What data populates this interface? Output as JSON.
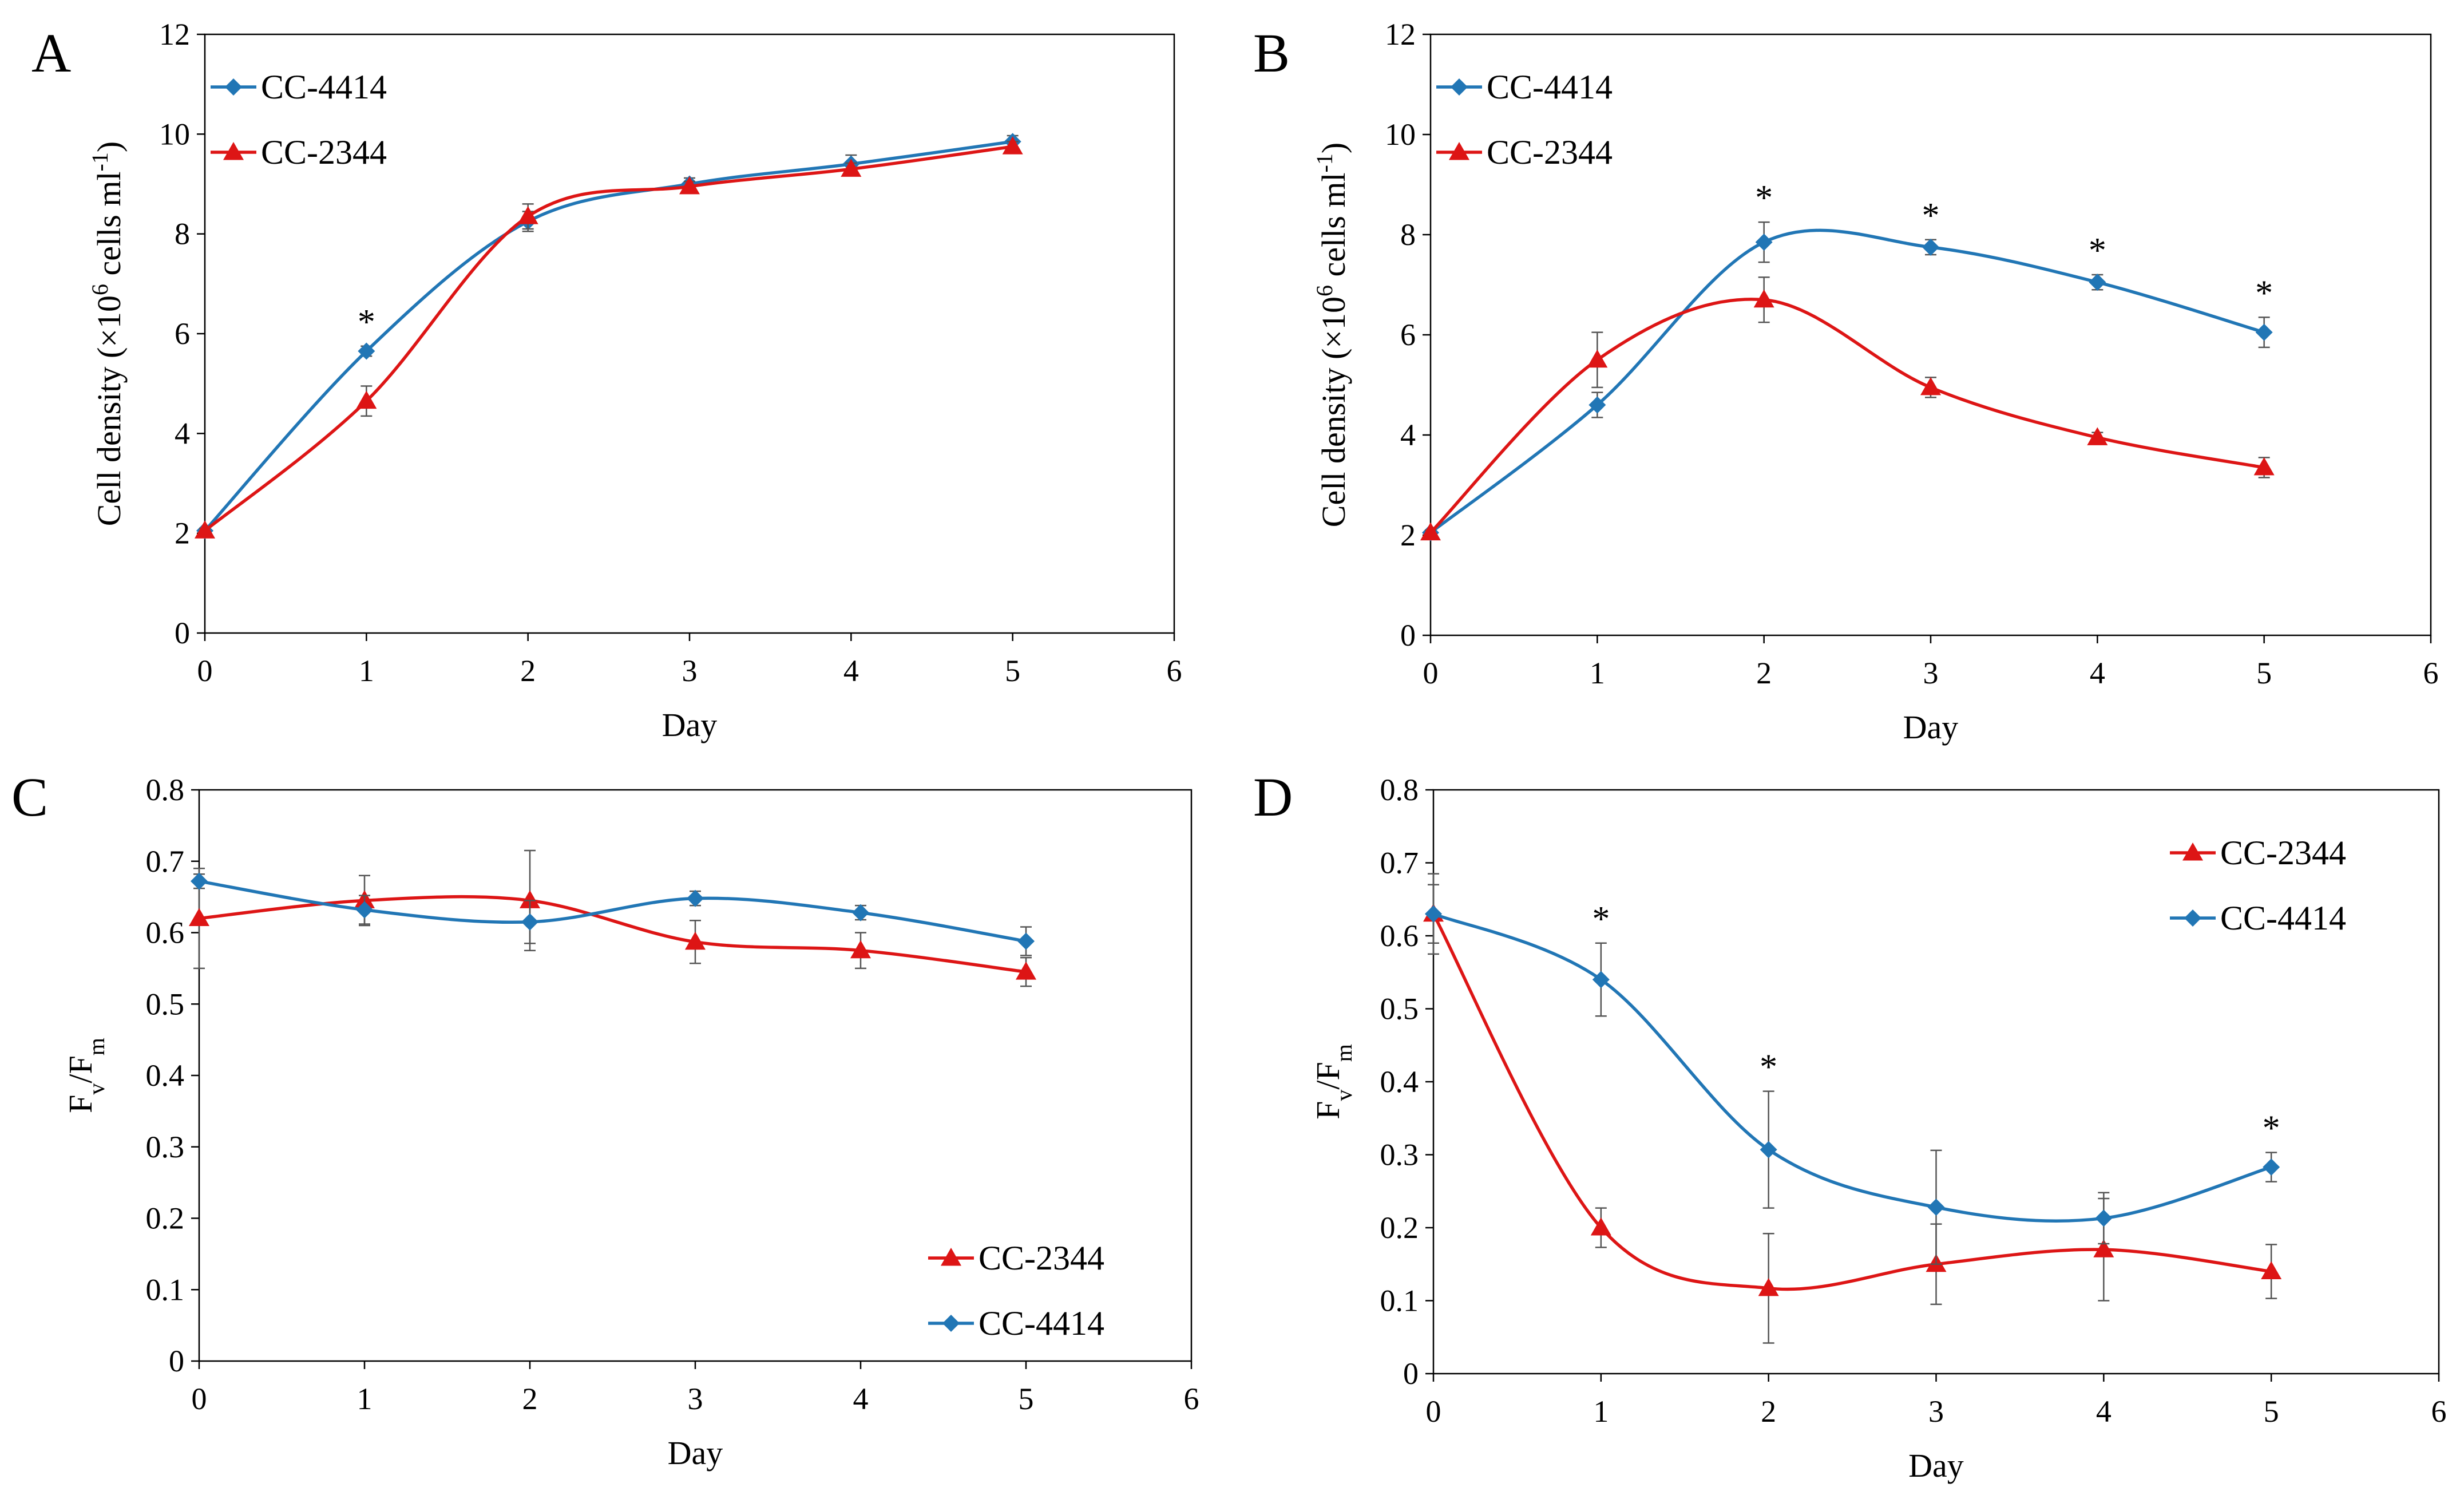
{
  "figure": {
    "colors": {
      "CC-4414": "#2176b5",
      "CC-2344": "#dd1515",
      "axis": "#000000",
      "errorbar": "#555555"
    }
  },
  "chart_data": [
    {
      "panel": "A",
      "type": "line",
      "xlabel": "Day",
      "ylabel": "Cell density (×10^6 cells ml^-1)",
      "ylabel_parts": {
        "main": "Cell density (×10",
        "sup1": "6",
        "mid": " cells ml",
        "sup2": "-1",
        "end": ")"
      },
      "xlim": [
        0,
        6
      ],
      "ylim": [
        0,
        12
      ],
      "xticks": [
        "0",
        "1",
        "2",
        "3",
        "4",
        "5",
        "6"
      ],
      "yticks": [
        "0",
        "2",
        "4",
        "6",
        "8",
        "10",
        "12"
      ],
      "legend_position": "top-left",
      "legend_order": [
        "CC-4414",
        "CC-2344"
      ],
      "series": [
        {
          "name": "CC-4414",
          "marker": "diamond",
          "x": [
            0,
            1,
            2,
            3,
            4,
            5
          ],
          "y": [
            2.05,
            5.65,
            8.25,
            9.0,
            9.4,
            9.85
          ],
          "err": [
            0.05,
            0.1,
            0.2,
            0.12,
            0.18,
            0.12
          ]
        },
        {
          "name": "CC-2344",
          "marker": "triangle",
          "x": [
            0,
            1,
            2,
            3,
            4,
            5
          ],
          "y": [
            2.05,
            4.65,
            8.35,
            8.95,
            9.3,
            9.75
          ],
          "err": [
            0.05,
            0.3,
            0.25,
            0.1,
            0.12,
            0.1
          ]
        }
      ],
      "significance": [
        {
          "x": 1,
          "y": 5.65,
          "label": "*"
        }
      ]
    },
    {
      "panel": "B",
      "type": "line",
      "xlabel": "Day",
      "ylabel": "Cell density (×10^6 cells ml^-1)",
      "ylabel_parts": {
        "main": "Cell density (×10",
        "sup1": "6",
        "mid": " cells ml",
        "sup2": "-1",
        "end": ")"
      },
      "xlim": [
        0,
        6
      ],
      "ylim": [
        0,
        12
      ],
      "xticks": [
        "0",
        "1",
        "2",
        "3",
        "4",
        "5",
        "6"
      ],
      "yticks": [
        "0",
        "2",
        "4",
        "6",
        "8",
        "10",
        "12"
      ],
      "legend_position": "top-left",
      "legend_order": [
        "CC-4414",
        "CC-2344"
      ],
      "series": [
        {
          "name": "CC-4414",
          "marker": "diamond",
          "x": [
            0,
            1,
            2,
            3,
            4,
            5
          ],
          "y": [
            2.05,
            4.6,
            7.85,
            7.75,
            7.05,
            6.05
          ],
          "err": [
            0.05,
            0.25,
            0.4,
            0.15,
            0.15,
            0.3
          ]
        },
        {
          "name": "CC-2344",
          "marker": "triangle",
          "x": [
            0,
            1,
            2,
            3,
            4,
            5
          ],
          "y": [
            2.05,
            5.5,
            6.7,
            4.95,
            3.95,
            3.35
          ],
          "err": [
            0.05,
            0.55,
            0.45,
            0.2,
            0.1,
            0.2
          ]
        }
      ],
      "significance": [
        {
          "x": 2,
          "y": 7.85,
          "label": "*"
        },
        {
          "x": 3,
          "y": 7.75,
          "label": "*"
        },
        {
          "x": 4,
          "y": 7.05,
          "label": "*"
        },
        {
          "x": 5,
          "y": 6.05,
          "label": "*"
        }
      ]
    },
    {
      "panel": "C",
      "type": "line",
      "xlabel": "Day",
      "ylabel": "Fv/Fm",
      "ylabel_parts": {
        "F1": "F",
        "sub1": "v",
        "slash": "/F",
        "sub2": "m"
      },
      "xlim": [
        0,
        6
      ],
      "ylim": [
        0,
        0.8
      ],
      "xticks": [
        "0",
        "1",
        "2",
        "3",
        "4",
        "5",
        "6"
      ],
      "yticks": [
        "0",
        "0.1",
        "0.2",
        "0.3",
        "0.4",
        "0.5",
        "0.6",
        "0.7",
        "0.8"
      ],
      "legend_position": "bottom-right",
      "legend_order": [
        "CC-2344",
        "CC-4414"
      ],
      "series": [
        {
          "name": "CC-2344",
          "marker": "triangle",
          "x": [
            0,
            1,
            2,
            3,
            4,
            5
          ],
          "y": [
            0.62,
            0.645,
            0.645,
            0.587,
            0.575,
            0.545
          ],
          "err": [
            0.07,
            0.035,
            0.07,
            0.03,
            0.025,
            0.02
          ]
        },
        {
          "name": "CC-4414",
          "marker": "diamond",
          "x": [
            0,
            1,
            2,
            3,
            4,
            5
          ],
          "y": [
            0.672,
            0.632,
            0.615,
            0.648,
            0.628,
            0.588
          ],
          "err": [
            0.01,
            0.02,
            0.03,
            0.01,
            0.01,
            0.02
          ]
        }
      ],
      "significance": []
    },
    {
      "panel": "D",
      "type": "line",
      "xlabel": "Day",
      "ylabel": "Fv/Fm",
      "ylabel_parts": {
        "F1": "F",
        "sub1": "v",
        "slash": "/F",
        "sub2": "m"
      },
      "xlim": [
        0,
        6
      ],
      "ylim": [
        0,
        0.8
      ],
      "xticks": [
        "0",
        "1",
        "2",
        "3",
        "4",
        "5",
        "6"
      ],
      "yticks": [
        "0",
        "0.1",
        "0.2",
        "0.3",
        "0.4",
        "0.5",
        "0.6",
        "0.7",
        "0.8"
      ],
      "legend_position": "top-right",
      "legend_order": [
        "CC-2344",
        "CC-4414"
      ],
      "series": [
        {
          "name": "CC-2344",
          "marker": "triangle",
          "x": [
            0,
            1,
            2,
            3,
            4,
            5
          ],
          "y": [
            0.63,
            0.2,
            0.117,
            0.15,
            0.17,
            0.14
          ],
          "err": [
            0.055,
            0.027,
            0.075,
            0.055,
            0.07,
            0.037
          ]
        },
        {
          "name": "CC-4414",
          "marker": "diamond",
          "x": [
            0,
            1,
            2,
            3,
            4,
            5
          ],
          "y": [
            0.63,
            0.54,
            0.307,
            0.228,
            0.213,
            0.283
          ],
          "err": [
            0.04,
            0.05,
            0.08,
            0.078,
            0.035,
            0.02
          ]
        }
      ],
      "significance": [
        {
          "x": 1,
          "y": 0.54,
          "label": "*"
        },
        {
          "x": 2,
          "y": 0.307,
          "label": "*"
        },
        {
          "x": 5,
          "y": 0.283,
          "label": "*"
        }
      ]
    }
  ]
}
